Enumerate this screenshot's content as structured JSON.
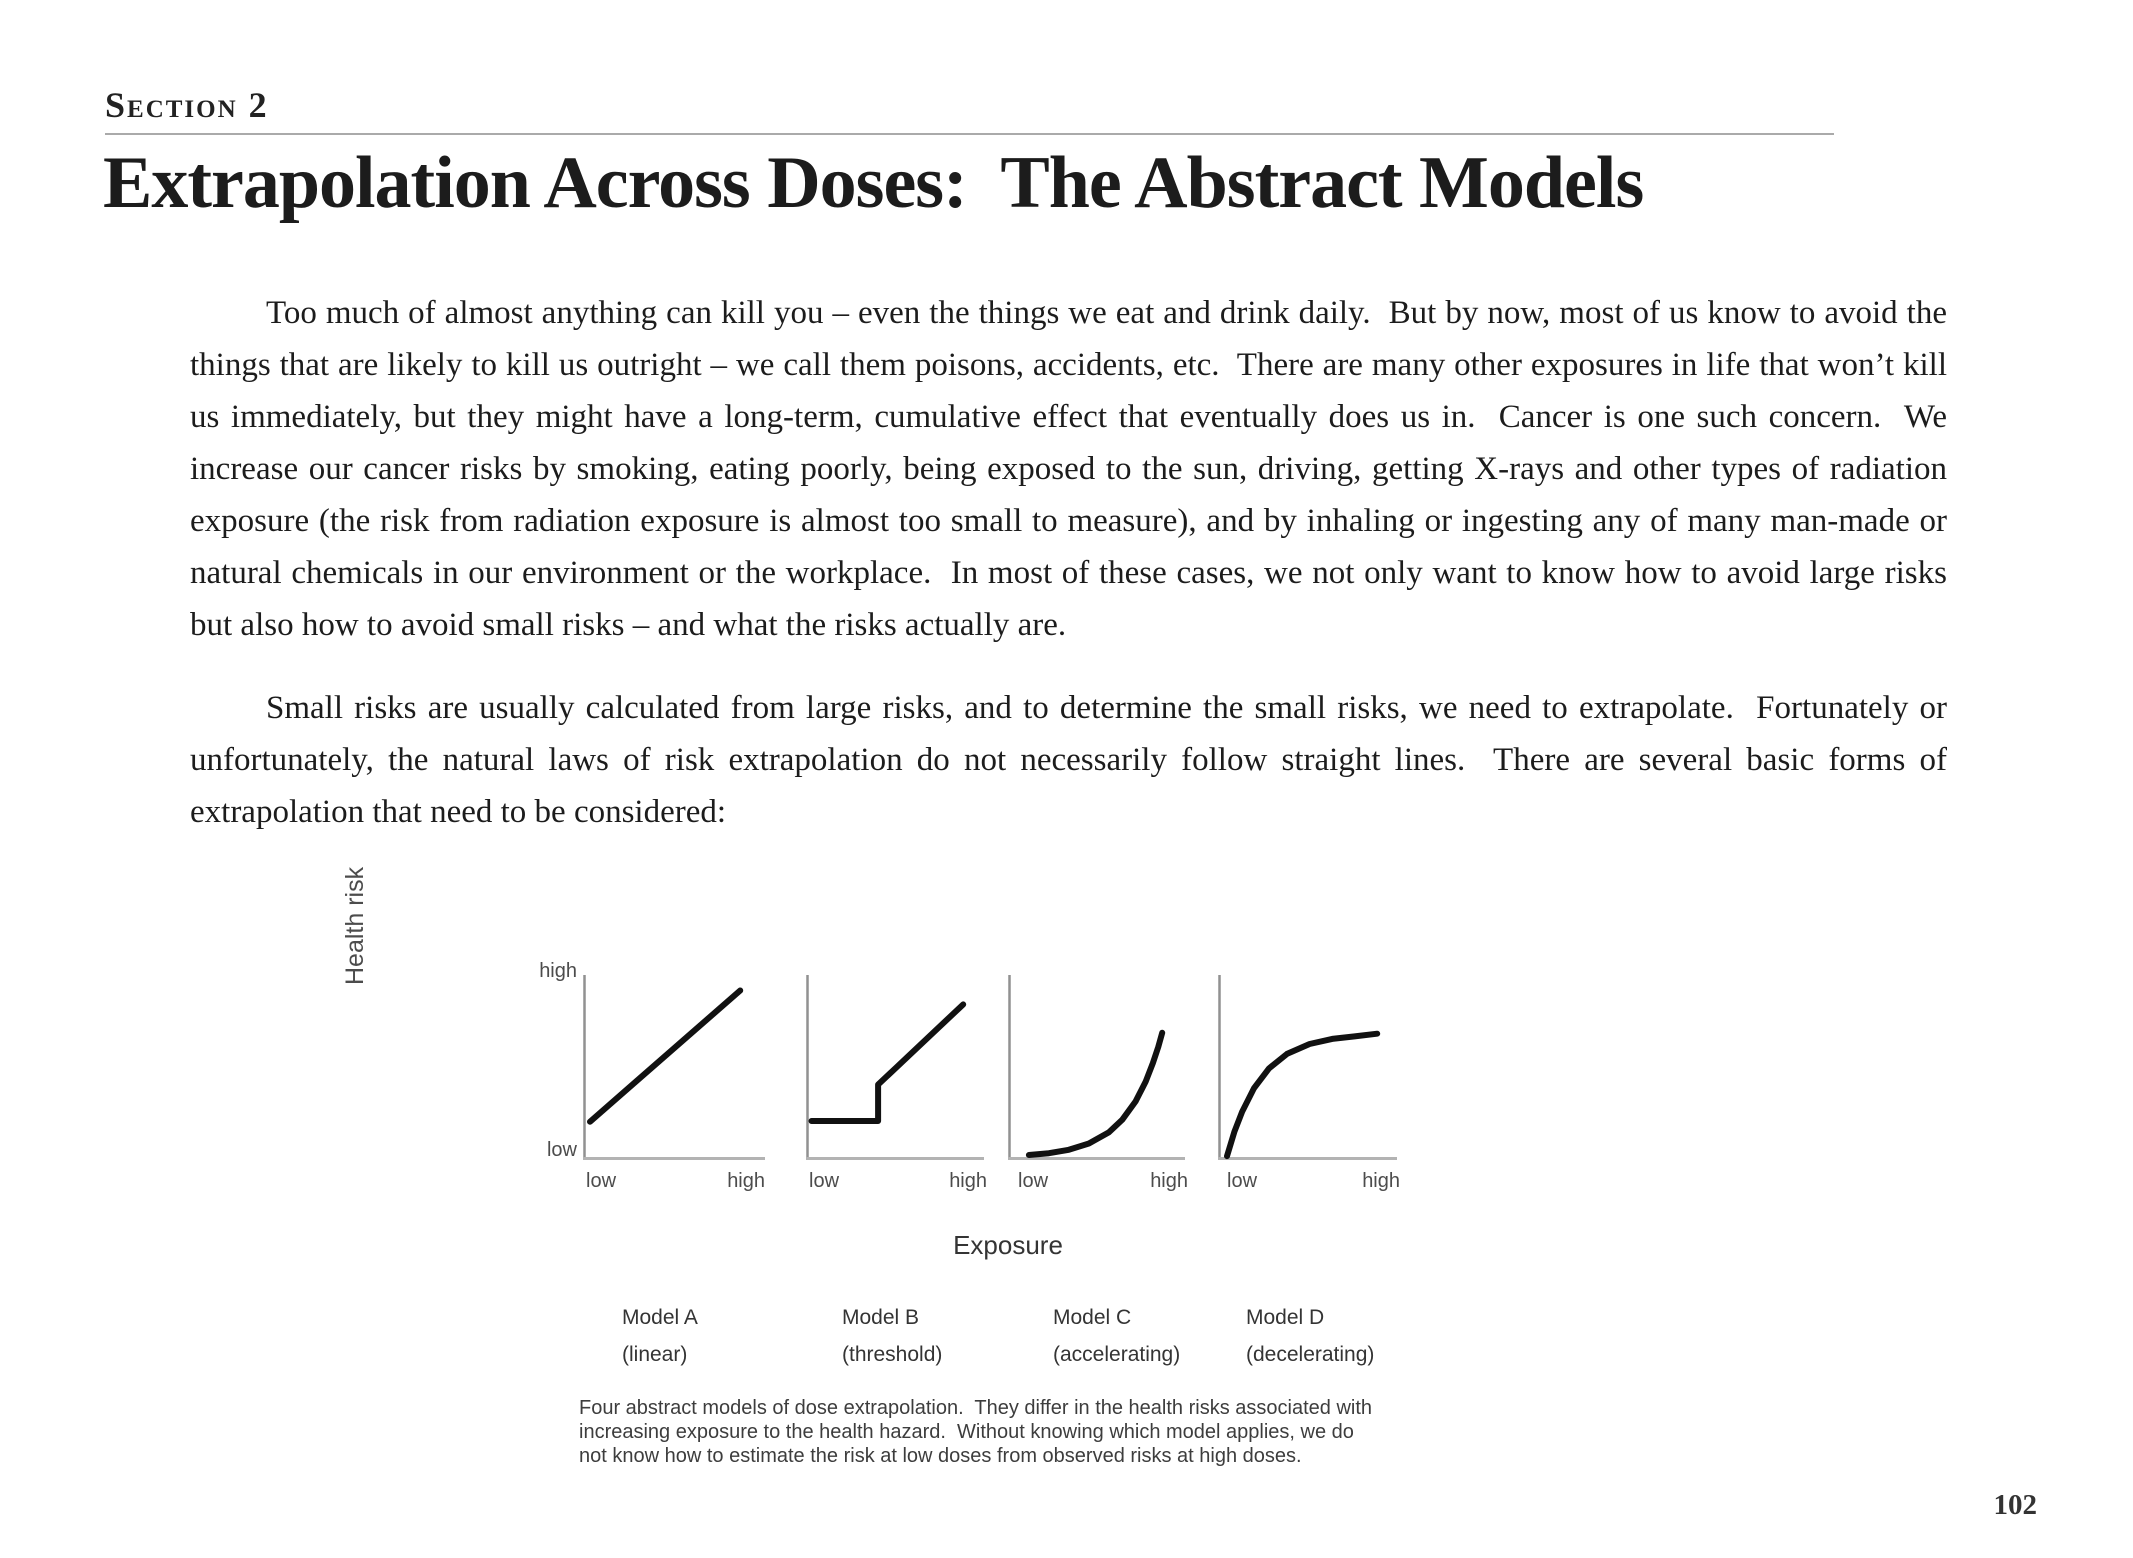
{
  "page": {
    "section_label": "Section 2",
    "title": "Extrapolation Across Doses:  The Abstract Models",
    "page_number": "102"
  },
  "paragraphs": [
    "Too much of almost anything can kill you – even the things we eat and drink daily.  But by now, most of us know to avoid the things that are likely to kill us outright – we call them poisons, accidents, etc.  There are many other exposures in life that won’t kill us immediately, but they might have a long-term, cumulative effect that eventually does us in.  Cancer is one such concern.  We increase our cancer risks by smoking, eating poorly, being exposed to the sun, driving, getting X-rays and other types of radiation exposure (the risk from radiation exposure is almost too small to measure), and by inhaling or ingesting any of many man-made or natural chemicals in our environment or the workplace.  In most of these cases, we not only want to know how to avoid large risks but also how to avoid small risks – and what the risks actually are.",
    "Small risks are usually calculated from large risks, and to determine the small risks, we need to extrapolate.  Fortunately or unfortunately, the natural laws of risk extrapolation do not necessarily follow straight lines.  There are several basic forms of extrapolation that need to be considered:"
  ],
  "figure": {
    "y_axis_title": "Health risk",
    "x_axis_title": "Exposure",
    "ticks": {
      "y_high": "high",
      "y_low": "low",
      "x_low": "low",
      "x_high": "high"
    },
    "caption": "Four abstract models of dose extrapolation.  They differ in the health risks associated with\nincreasing exposure to the health hazard.  Without knowing which model applies, we do\nnot know how to estimate the risk at low doses from observed risks at high doses.",
    "colors": {
      "curve": "#111111",
      "y_axis": "#919191",
      "x_axis": "#b3b3b3"
    }
  },
  "chart_data": {
    "type": "line",
    "title": "Four abstract models of dose extrapolation",
    "xlabel": "Exposure",
    "ylabel": "Health risk",
    "x_range_labels": [
      "low",
      "high"
    ],
    "y_range_labels": [
      "low",
      "high"
    ],
    "grid": false,
    "axes_normalized": true,
    "charts": [
      {
        "model": "Model A",
        "form": "(linear)",
        "shape": "straight line rising from low risk at low exposure to high risk at high exposure",
        "points": [
          [
            0.028,
            0.196
          ],
          [
            0.872,
            0.925
          ]
        ]
      },
      {
        "model": "Model B",
        "form": "(threshold)",
        "shape": "flat at low risk until a threshold exposure, then jumps and rises linearly",
        "points": [
          [
            0.02,
            0.2
          ],
          [
            0.403,
            0.2
          ],
          [
            0.403,
            0.402
          ],
          [
            0.892,
            0.848
          ]
        ]
      },
      {
        "model": "Model C",
        "form": "(accelerating)",
        "shape": "risk nearly flat at low exposure, rising ever more steeply at high exposure",
        "points": [
          [
            0.109,
            0.011
          ],
          [
            0.225,
            0.021
          ],
          [
            0.34,
            0.04
          ],
          [
            0.456,
            0.075
          ],
          [
            0.572,
            0.138
          ],
          [
            0.649,
            0.207
          ],
          [
            0.726,
            0.309
          ],
          [
            0.784,
            0.418
          ],
          [
            0.826,
            0.522
          ],
          [
            0.857,
            0.612
          ],
          [
            0.88,
            0.69
          ]
        ]
      },
      {
        "model": "Model D",
        "form": "(decelerating)",
        "shape": "risk rises steeply at low exposure then levels off at high exposure",
        "points": [
          [
            0.04,
            0.005
          ],
          [
            0.083,
            0.142
          ],
          [
            0.126,
            0.251
          ],
          [
            0.194,
            0.382
          ],
          [
            0.28,
            0.492
          ],
          [
            0.383,
            0.573
          ],
          [
            0.512,
            0.628
          ],
          [
            0.641,
            0.656
          ],
          [
            0.769,
            0.67
          ],
          [
            0.898,
            0.685
          ]
        ]
      }
    ]
  }
}
